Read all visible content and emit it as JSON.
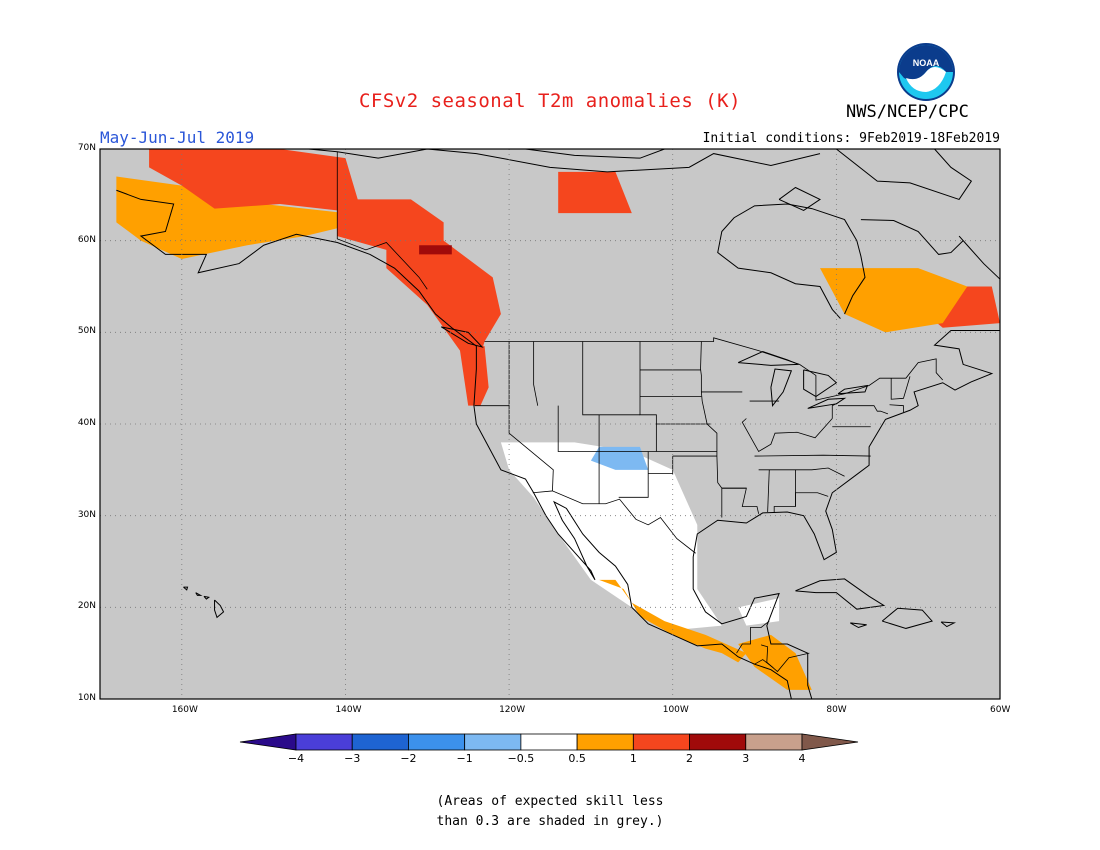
{
  "header": {
    "title": "CFSv2 seasonal T2m anomalies (K)",
    "org": "NWS/NCEP/CPC",
    "logo_text": "NOAA",
    "season": "May-Jun-Jul 2019",
    "initial_conditions": "Initial conditions: 9Feb2019-18Feb2019"
  },
  "map": {
    "projection": "lat-lon",
    "lon_range": [
      -170,
      -60
    ],
    "lat_range": [
      10,
      70
    ],
    "grid": "dotted",
    "skill_mask_color": "#c8c8c8",
    "lat_ticks": [
      "70N",
      "60N",
      "50N",
      "40N",
      "30N",
      "20N",
      "10N"
    ],
    "lon_ticks": [
      "160W",
      "140W",
      "120W",
      "100W",
      "80W",
      "60W"
    ]
  },
  "legend": {
    "units": "K",
    "tick_labels": [
      "-4",
      "-3",
      "-2",
      "-1",
      "-0.5",
      "0.5",
      "1",
      "2",
      "3",
      "4"
    ],
    "bins": [
      {
        "range": "< -4",
        "color": "#2a0a8a"
      },
      {
        "range": "-4 to -3",
        "color": "#4a3ed8"
      },
      {
        "range": "-3 to -2",
        "color": "#1e64d2"
      },
      {
        "range": "-2 to -1",
        "color": "#3c91ec"
      },
      {
        "range": "-1 to -0.5",
        "color": "#7db9f2"
      },
      {
        "range": "-0.5 to 0.5",
        "color": "#ffffff"
      },
      {
        "range": "0.5 to 1",
        "color": "#ffa000"
      },
      {
        "range": "1 to 2",
        "color": "#f5461e"
      },
      {
        "range": "2 to 3",
        "color": "#a00a0a"
      },
      {
        "range": "3 to 4",
        "color": "#c8a08c"
      },
      {
        "range": "> 4",
        "color": "#80584a"
      }
    ]
  },
  "footnote": {
    "line1": "(Areas of expected skill less",
    "line2": "than 0.3 are shaded in grey.)"
  },
  "anomaly_regions": [
    {
      "name": "alaska-west",
      "bin": "0.5 to 1"
    },
    {
      "name": "alaska-north",
      "bin": "1 to 2"
    },
    {
      "name": "yukon",
      "bin": "1 to 2"
    },
    {
      "name": "bc-coast",
      "bin": "1 to 2"
    },
    {
      "name": "bc-peak",
      "bin": "2 to 3"
    },
    {
      "name": "pacific-nw-coast",
      "bin": "1 to 2"
    },
    {
      "name": "nunavut-island",
      "bin": "1 to 2"
    },
    {
      "name": "four-corners-cold",
      "bin": "-1 to -0.5"
    },
    {
      "name": "mexico-pacific",
      "bin": "0.5 to 1"
    },
    {
      "name": "central-america",
      "bin": "0.5 to 1"
    },
    {
      "name": "labrador",
      "bin": "1 to 2"
    },
    {
      "name": "quebec",
      "bin": "0.5 to 1"
    }
  ]
}
